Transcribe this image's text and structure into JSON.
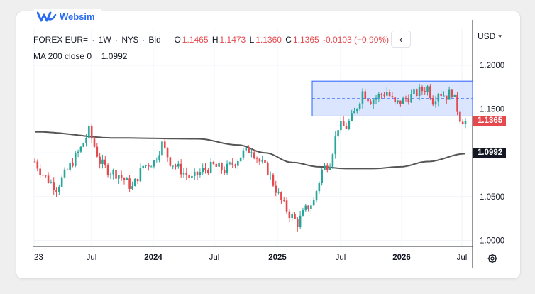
{
  "brand": {
    "name": "Websim",
    "color": "#2a6df4"
  },
  "legend": {
    "symbol": "FOREX EUR=",
    "interval": "1W",
    "exchange": "NY$",
    "quote_type": "Bid",
    "open_label": "O",
    "open": "1.1465",
    "high_label": "H",
    "high": "1.1473",
    "low_label": "L",
    "low": "1.1360",
    "close_label": "C",
    "close": "1.1365",
    "change": "-0.0103 (−0.90%)",
    "ma_label": "MA 200 close 0",
    "ma_value": "1.0992"
  },
  "toolbar": {
    "collapse_icon": "chevron-left-icon",
    "currency": "USD",
    "settings_icon": "gear-icon"
  },
  "badges": {
    "last_price": "1.1365",
    "ma_value": "1.0992"
  },
  "colors": {
    "up": "#26a69a",
    "down": "#e5484d",
    "ma": "#555555",
    "box_fill": "#cfdcfd",
    "box_stroke": "#2962ff"
  },
  "chart_data": {
    "type": "candlestick",
    "series": [
      {
        "name": "FOREX EUR=",
        "style": "candles"
      },
      {
        "name": "MA 200 close 0",
        "style": "line"
      }
    ],
    "y_axis": {
      "position": "right",
      "ticks": [
        "1.2000",
        "1.1500",
        "1.1000",
        "1.0500",
        "1.0000"
      ],
      "range": [
        0.99,
        1.23
      ]
    },
    "x_axis": {
      "ticks": [
        "23",
        "Jul",
        "2024",
        "Jul",
        "2025",
        "Jul",
        "2026",
        "Jul"
      ],
      "bold": [
        "2024",
        "2025",
        "2026"
      ]
    },
    "last_price": 1.1365,
    "ma_last": 1.0992,
    "range_box": {
      "top": 1.182,
      "bottom": 1.142,
      "mid": 1.162
    },
    "anchors": [
      [
        0,
        1.09
      ],
      [
        3,
        1.075
      ],
      [
        8,
        1.06
      ],
      [
        13,
        1.085
      ],
      [
        17,
        1.105
      ],
      [
        20,
        1.125
      ],
      [
        24,
        1.09
      ],
      [
        27,
        1.08
      ],
      [
        31,
        1.075
      ],
      [
        36,
        1.06
      ],
      [
        40,
        1.085
      ],
      [
        44,
        1.09
      ],
      [
        47,
        1.11
      ],
      [
        50,
        1.09
      ],
      [
        54,
        1.08
      ],
      [
        58,
        1.07
      ],
      [
        62,
        1.08
      ],
      [
        66,
        1.085
      ],
      [
        70,
        1.08
      ],
      [
        74,
        1.09
      ],
      [
        77,
        1.1
      ],
      [
        80,
        1.105
      ],
      [
        83,
        1.09
      ],
      [
        86,
        1.08
      ],
      [
        88,
        1.065
      ],
      [
        91,
        1.045
      ],
      [
        94,
        1.03
      ],
      [
        97,
        1.02
      ],
      [
        100,
        1.035
      ],
      [
        103,
        1.045
      ],
      [
        106,
        1.08
      ],
      [
        109,
        1.09
      ],
      [
        112,
        1.13
      ],
      [
        115,
        1.13
      ],
      [
        118,
        1.145
      ],
      [
        121,
        1.17
      ],
      [
        124,
        1.16
      ],
      [
        127,
        1.165
      ],
      [
        130,
        1.17
      ],
      [
        133,
        1.155
      ],
      [
        136,
        1.16
      ],
      [
        139,
        1.165
      ],
      [
        142,
        1.17
      ],
      [
        145,
        1.175
      ],
      [
        147,
        1.16
      ],
      [
        149,
        1.17
      ],
      [
        152,
        1.165
      ],
      [
        154,
        1.17
      ],
      [
        157,
        1.14
      ],
      [
        159,
        1.135
      ]
    ],
    "ma_points": [
      [
        0,
        1.124
      ],
      [
        30,
        1.117
      ],
      [
        60,
        1.116
      ],
      [
        75,
        1.109
      ],
      [
        85,
        1.1
      ],
      [
        95,
        1.089
      ],
      [
        105,
        1.084
      ],
      [
        115,
        1.082
      ],
      [
        125,
        1.082
      ],
      [
        135,
        1.084
      ],
      [
        145,
        1.09
      ],
      [
        159,
        1.099
      ]
    ]
  }
}
